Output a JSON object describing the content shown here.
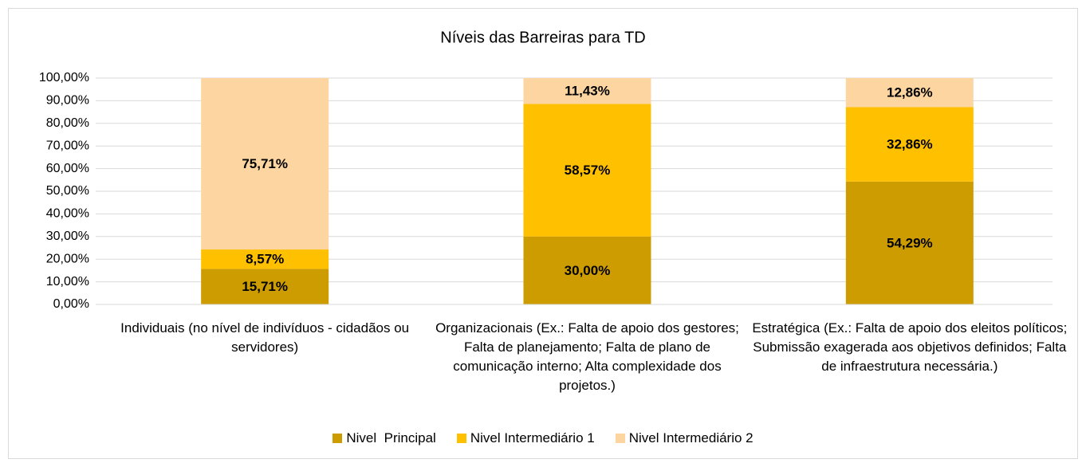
{
  "chart_data": {
    "type": "stacked_bar",
    "title": "Níveis das Barreiras para TD",
    "categories": [
      "Individuais (no nível de indivíduos - cidadãos ou servidores)",
      "Organizacionais (Ex.: Falta de apoio dos gestores; Falta de planejamento; Falta de plano de comunicação interno; Alta complexidade dos projetos.)",
      "Estratégica (Ex.: Falta de apoio dos eleitos políticos; Submissão exagerada aos objetivos definidos; Falta de infraestrutura necessária.)"
    ],
    "series": [
      {
        "name": "Nivel  Principal",
        "color": "#cc9c00",
        "values": [
          15.71,
          30.0,
          54.29
        ],
        "value_labels": [
          "15,71%",
          "30,00%",
          "54,29%"
        ]
      },
      {
        "name": "Nivel Intermediário 1",
        "color": "#ffc000",
        "values": [
          8.57,
          58.57,
          32.86
        ],
        "value_labels": [
          "8,57%",
          "58,57%",
          "32,86%"
        ]
      },
      {
        "name": "Nivel Intermediário 2",
        "color": "#fdd5a0",
        "values": [
          75.71,
          11.43,
          12.86
        ],
        "value_labels": [
          "75,71%",
          "11,43%",
          "12,86%"
        ]
      }
    ],
    "ylim": [
      0,
      100
    ],
    "yticks": [
      {
        "value": 0,
        "label": "0,00%"
      },
      {
        "value": 10,
        "label": "10,00%"
      },
      {
        "value": 20,
        "label": "20,00%"
      },
      {
        "value": 30,
        "label": "30,00%"
      },
      {
        "value": 40,
        "label": "40,00%"
      },
      {
        "value": 50,
        "label": "50,00%"
      },
      {
        "value": 60,
        "label": "60,00%"
      },
      {
        "value": 70,
        "label": "70,00%"
      },
      {
        "value": 80,
        "label": "80,00%"
      },
      {
        "value": 90,
        "label": "90,00%"
      },
      {
        "value": 100,
        "label": "100,00%"
      }
    ],
    "grid": true,
    "legend": "bottom"
  }
}
